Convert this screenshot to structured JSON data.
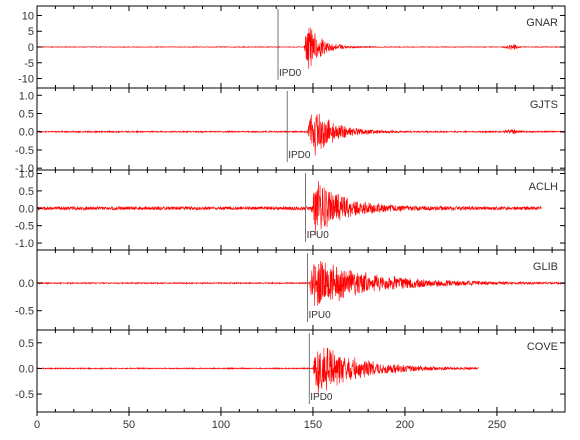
{
  "chart_data": {
    "type": "line",
    "description_free": true,
    "x_ticks": [
      0,
      50,
      100,
      150,
      200,
      250
    ],
    "xlim": [
      0,
      287
    ],
    "trace_color": "#ff0000",
    "axis_color": "#000000",
    "panels": [
      {
        "station": "GNAR",
        "pick_label": "IPD0",
        "pick_time": 131,
        "ylim": [
          -13,
          13
        ],
        "y_ticks": [
          10,
          5,
          0,
          -5,
          -10
        ],
        "y_tick_labels": [
          "10",
          "5",
          "0",
          "-5",
          "-10"
        ],
        "onset": 145,
        "peak_amp": 11.5,
        "noise_amp": 0.12,
        "decay": 7,
        "end": 287,
        "extra_bursts": [
          {
            "t": 258,
            "amp": 0.9,
            "width": 3
          }
        ]
      },
      {
        "station": "GJTS",
        "pick_label": "IPD0",
        "pick_time": 136,
        "ylim": [
          -1.05,
          1.2
        ],
        "y_ticks": [
          1.0,
          0.5,
          0.0,
          -0.5,
          -1.0
        ],
        "y_tick_labels": [
          "1.0",
          "0.5",
          "0.0",
          "-0.5",
          "-1.0"
        ],
        "onset": 147,
        "peak_amp": 1.0,
        "noise_amp": 0.02,
        "decay": 11,
        "end": 287,
        "extra_bursts": [
          {
            "t": 258,
            "amp": 0.05,
            "width": 4
          }
        ]
      },
      {
        "station": "ACLH",
        "pick_label": "IPU0",
        "pick_time": 146,
        "ylim": [
          -1.2,
          1.1
        ],
        "y_ticks": [
          1.0,
          0.5,
          0.0,
          -0.5,
          -1.0
        ],
        "y_tick_labels": [
          "1.0",
          "0.5",
          "0.0",
          "-0.5",
          "-1.0"
        ],
        "onset": 149,
        "peak_amp": 1.0,
        "noise_amp": 0.055,
        "decay": 15,
        "end": 274,
        "extra_bursts": []
      },
      {
        "station": "GLIB",
        "pick_label": "IPU0",
        "pick_time": 147,
        "ylim": [
          -0.85,
          0.6
        ],
        "y_ticks": [
          0.0,
          -0.5
        ],
        "y_tick_labels": [
          "0.0",
          "-0.5"
        ],
        "onset": 148,
        "peak_amp": 0.55,
        "noise_amp": 0.012,
        "decay": 30,
        "end": 287,
        "extra_bursts": []
      },
      {
        "station": "COVE",
        "pick_label": "IPD0",
        "pick_time": 148,
        "ylim": [
          -0.85,
          0.75
        ],
        "y_ticks": [
          0.5,
          0.0,
          -0.5
        ],
        "y_tick_labels": [
          "0.5",
          "0.0",
          "-0.5"
        ],
        "onset": 150,
        "peak_amp": 0.6,
        "noise_amp": 0.012,
        "decay": 22,
        "end": 240,
        "extra_bursts": []
      }
    ]
  }
}
